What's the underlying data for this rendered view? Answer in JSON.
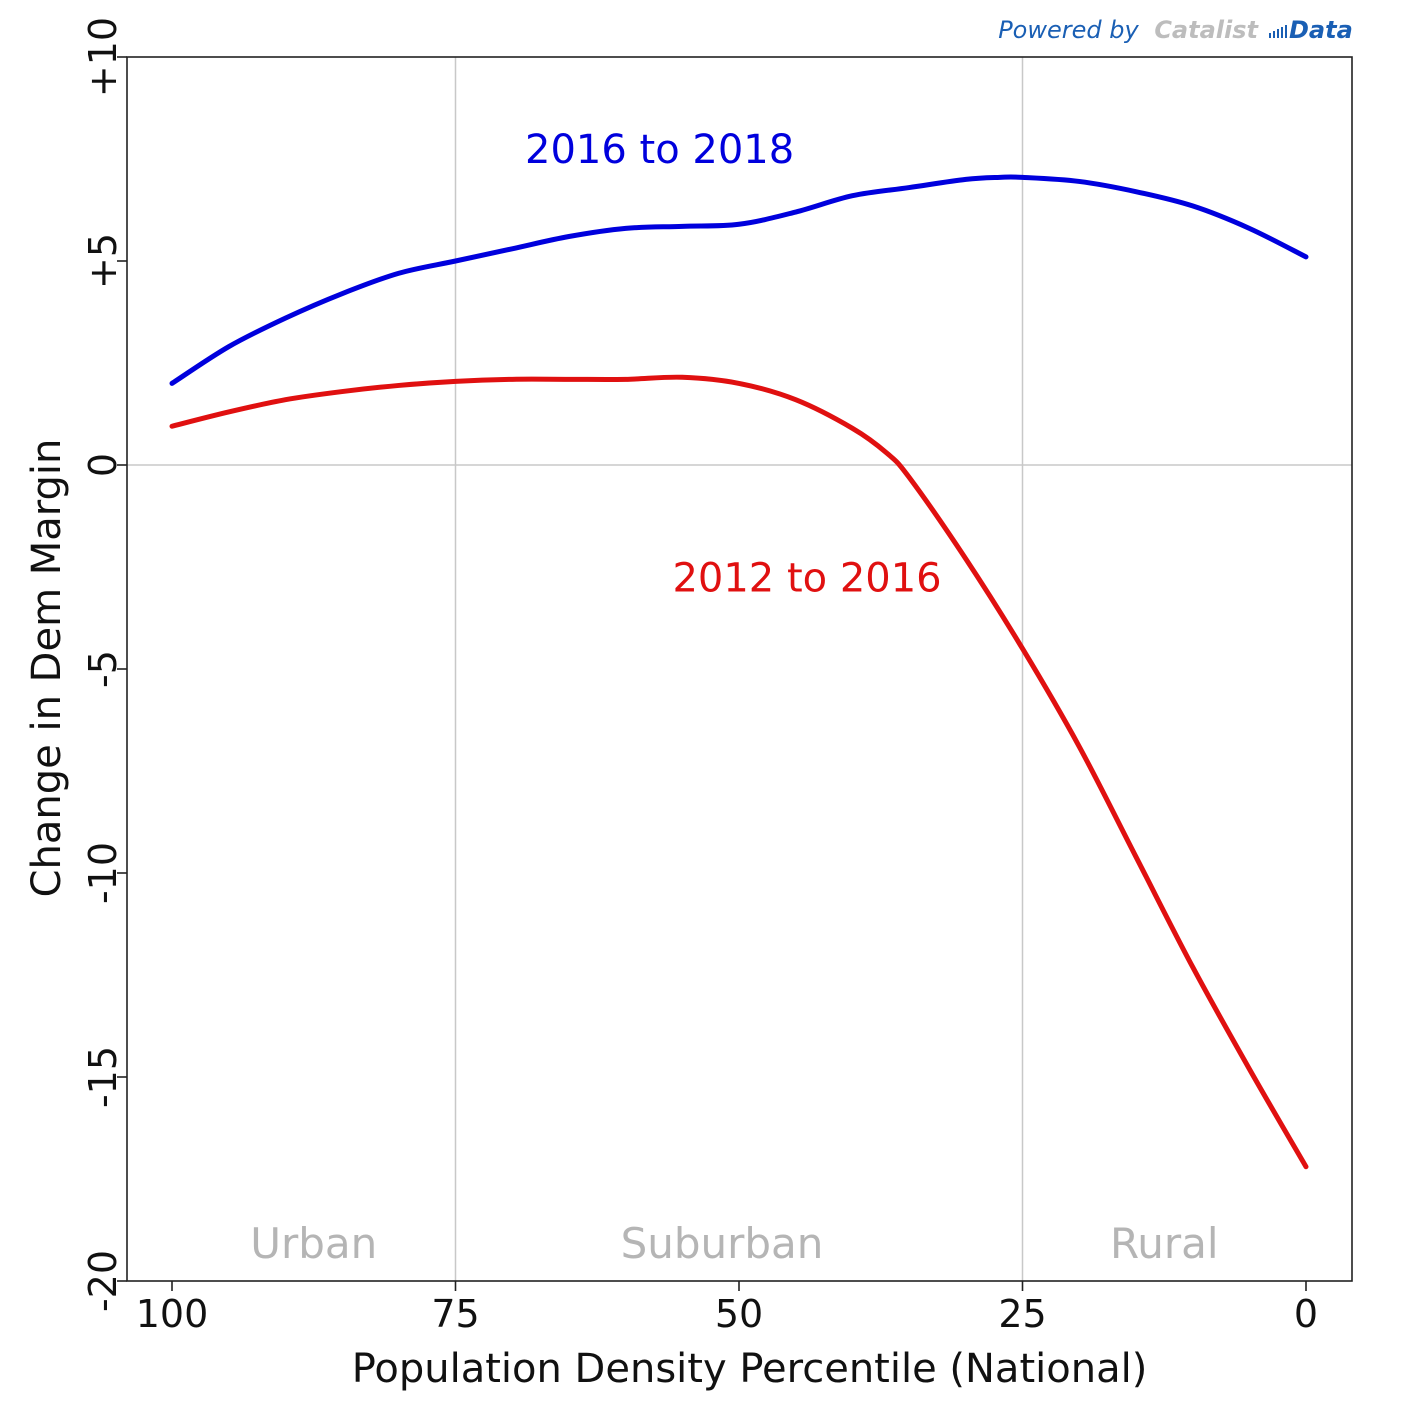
{
  "credit": {
    "powered_by": "Powered by",
    "catalist": "Catalist",
    "data": "Data"
  },
  "colors": {
    "blue_series": "#0000dd",
    "red_series": "#e01010",
    "region_text": "#b5b5b5",
    "grid": "#c8c8c8",
    "credit_blue": "#1a5fb4",
    "credit_gray": "#bdbdbd"
  },
  "chart_data": {
    "type": "line",
    "title": "",
    "xlabel": "Population Density Percentile (National)",
    "ylabel": "Change in Dem Margin",
    "xlim": [
      100,
      0
    ],
    "ylim": [
      -20,
      10
    ],
    "x_reversed": true,
    "grid": true,
    "x_ticks": [
      {
        "value": 100,
        "label": "100"
      },
      {
        "value": 75,
        "label": "75"
      },
      {
        "value": 50,
        "label": "50"
      },
      {
        "value": 25,
        "label": "25"
      },
      {
        "value": 0,
        "label": "0"
      }
    ],
    "y_ticks": [
      {
        "value": 10,
        "label": "+10"
      },
      {
        "value": 5,
        "label": "+5"
      },
      {
        "value": 0,
        "label": "0"
      },
      {
        "value": -5,
        "label": "-5"
      },
      {
        "value": -10,
        "label": "-10"
      },
      {
        "value": -15,
        "label": "-15"
      },
      {
        "value": -20,
        "label": "-20"
      }
    ],
    "regions": [
      {
        "label": "Urban",
        "x": 87.5
      },
      {
        "label": "Suburban",
        "x": 51.5
      },
      {
        "label": "Rural",
        "x": 12.5
      }
    ],
    "series": [
      {
        "name": "2016 to 2018",
        "color": "#0000dd",
        "label_x": 57,
        "label_y": 7.4,
        "x": [
          100,
          95,
          90,
          85,
          80,
          75,
          70,
          65,
          60,
          55,
          50,
          45,
          40,
          35,
          30,
          27,
          25,
          20,
          15,
          10,
          5,
          0
        ],
        "y": [
          2.0,
          2.9,
          3.6,
          4.2,
          4.7,
          5.0,
          5.3,
          5.6,
          5.8,
          5.85,
          5.9,
          6.2,
          6.6,
          6.8,
          7.0,
          7.05,
          7.05,
          6.95,
          6.7,
          6.35,
          5.8,
          5.1
        ]
      },
      {
        "name": "2012 to 2016",
        "color": "#e01010",
        "label_x": 44,
        "label_y": -3.1,
        "x": [
          100,
          95,
          90,
          85,
          80,
          75,
          70,
          65,
          60,
          55,
          50,
          45,
          40,
          37,
          35,
          30,
          25,
          20,
          15,
          10,
          5,
          0
        ],
        "y": [
          0.95,
          1.3,
          1.6,
          1.8,
          1.95,
          2.05,
          2.1,
          2.1,
          2.1,
          2.15,
          2.0,
          1.6,
          0.9,
          0.3,
          -0.3,
          -2.3,
          -4.5,
          -6.9,
          -9.6,
          -12.3,
          -14.8,
          -17.2
        ]
      }
    ]
  }
}
